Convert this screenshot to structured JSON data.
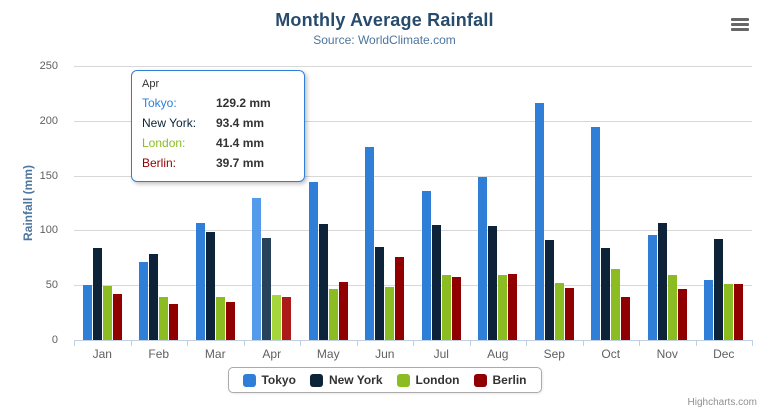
{
  "chart": {
    "title": "Monthly Average Rainfall",
    "subtitle": "Source: WorldClimate.com",
    "y_axis_title": "Rainfall (mm)",
    "credits": "Highcharts.com"
  },
  "colors": {
    "title": "#274b6d",
    "subtitle": "#4d759e",
    "axis_label": "#606060",
    "axis_line": "#c0d0e0",
    "gridline": "#d8d8d8",
    "legend_text": "#333333",
    "credits": "#909090",
    "tooltip_border": "#2f7ed8"
  },
  "tooltip": {
    "header": "Apr",
    "rows": [
      {
        "series": "Tokyo",
        "label": "Tokyo:",
        "value": "129.2 mm"
      },
      {
        "series": "New York",
        "label": "New York:",
        "value": "93.4 mm"
      },
      {
        "series": "London",
        "label": "London:",
        "value": "41.4 mm"
      },
      {
        "series": "Berlin",
        "label": "Berlin:",
        "value": "39.7 mm"
      }
    ]
  },
  "chart_data": {
    "type": "bar",
    "title": "Monthly Average Rainfall",
    "subtitle": "Source: WorldClimate.com",
    "xlabel": "",
    "ylabel": "Rainfall (mm)",
    "ylim": [
      0,
      250
    ],
    "tick_interval": 50,
    "grid": true,
    "legend_position": "bottom",
    "hovered_category_index": 3,
    "categories": [
      "Jan",
      "Feb",
      "Mar",
      "Apr",
      "May",
      "Jun",
      "Jul",
      "Aug",
      "Sep",
      "Oct",
      "Nov",
      "Dec"
    ],
    "series": [
      {
        "name": "Tokyo",
        "color": "#2f7ed8",
        "hover_color": "#549ceb",
        "values": [
          49.9,
          71.5,
          106.4,
          129.2,
          144.0,
          176.0,
          135.6,
          148.5,
          216.4,
          194.1,
          95.6,
          54.4
        ]
      },
      {
        "name": "New York",
        "color": "#0d233a",
        "hover_color": "#28425c",
        "values": [
          83.6,
          78.8,
          98.5,
          93.4,
          106.0,
          84.5,
          105.0,
          104.3,
          91.2,
          83.5,
          106.6,
          92.3
        ]
      },
      {
        "name": "London",
        "color": "#8bbc21",
        "hover_color": "#a5d63b",
        "values": [
          48.9,
          38.8,
          39.3,
          41.4,
          47.0,
          48.3,
          59.0,
          59.6,
          52.4,
          65.2,
          59.3,
          51.2
        ]
      },
      {
        "name": "Berlin",
        "color": "#910000",
        "hover_color": "#ad1a1a",
        "values": [
          42.4,
          33.2,
          34.5,
          39.7,
          52.6,
          75.5,
          57.4,
          60.4,
          47.6,
          39.1,
          46.8,
          51.1
        ]
      }
    ]
  }
}
